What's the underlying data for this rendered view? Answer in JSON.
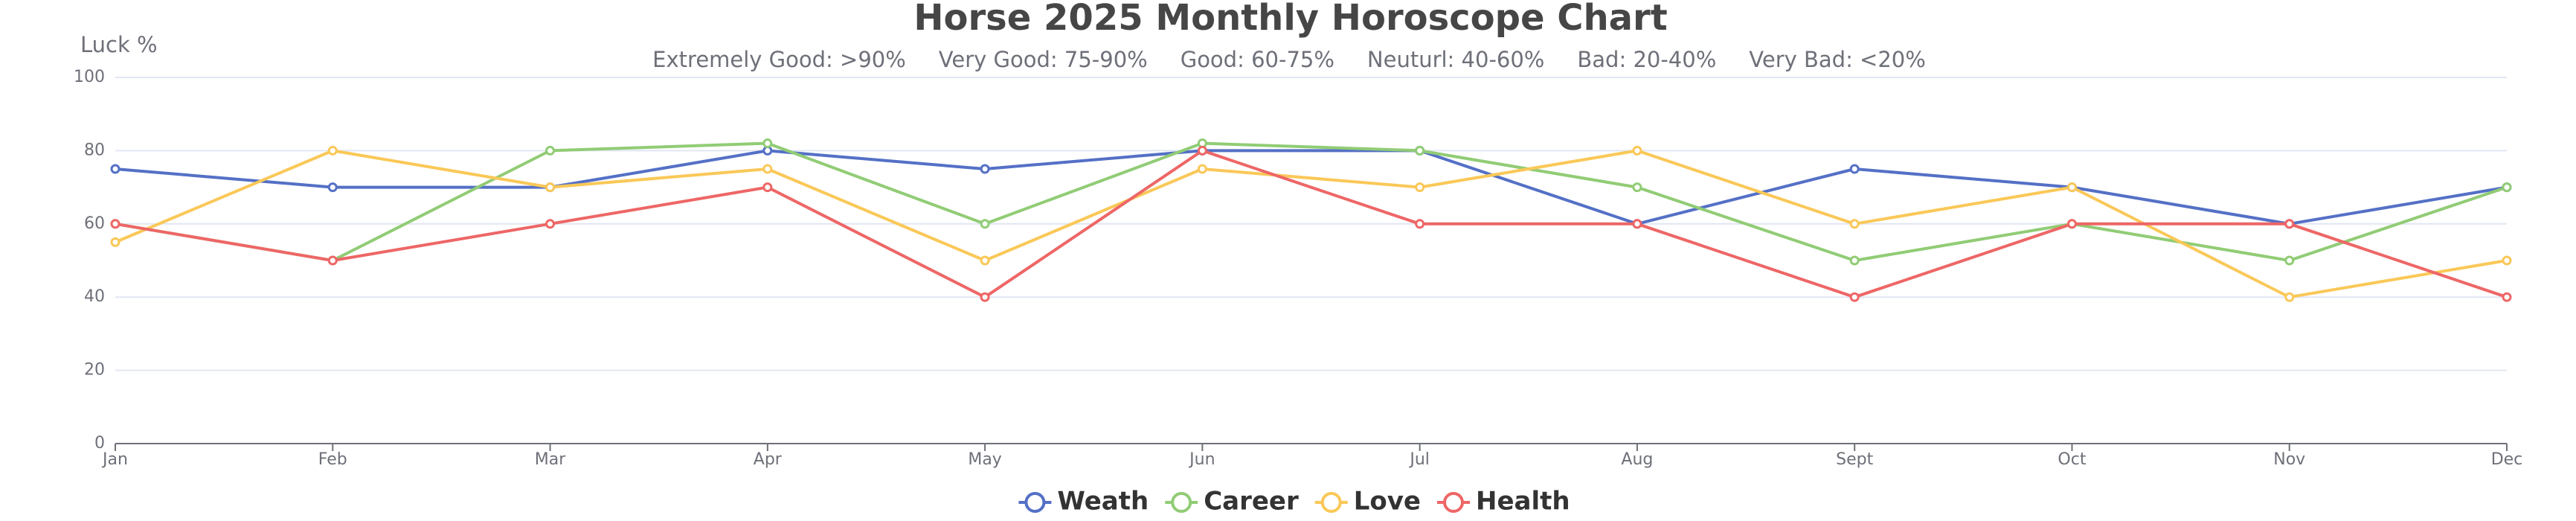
{
  "chart_data": {
    "type": "line",
    "title": "Horse 2025 Monthly Horoscope Chart",
    "subtitle_items": [
      "Extremely Good: >90%",
      "Very Good: 75-90%",
      "Good: 60-75%",
      "Neuturl: 40-60%",
      "Bad: 20-40%",
      "Very Bad: <20%"
    ],
    "y_label": "Luck %",
    "categories": [
      "Jan",
      "Feb",
      "Mar",
      "Apr",
      "May",
      "Jun",
      "Jul",
      "Aug",
      "Sept",
      "Oct",
      "Nov",
      "Dec"
    ],
    "series": [
      {
        "name": "Weath",
        "color": "#5470c6",
        "values": [
          75,
          70,
          70,
          80,
          75,
          80,
          80,
          60,
          75,
          70,
          60,
          70
        ]
      },
      {
        "name": "Career",
        "color": "#91cc75",
        "values": [
          60,
          50,
          80,
          82,
          60,
          82,
          80,
          70,
          50,
          60,
          50,
          70
        ]
      },
      {
        "name": "Love",
        "color": "#fac858",
        "values": [
          55,
          80,
          70,
          75,
          50,
          75,
          70,
          80,
          60,
          70,
          40,
          50
        ]
      },
      {
        "name": "Health",
        "color": "#ee6666",
        "values": [
          60,
          50,
          60,
          70,
          40,
          80,
          60,
          60,
          40,
          60,
          60,
          40
        ]
      }
    ],
    "ylim": [
      0,
      100
    ],
    "yticks": [
      0,
      20,
      40,
      60,
      80,
      100
    ],
    "grid": true,
    "legend": "bottom"
  }
}
